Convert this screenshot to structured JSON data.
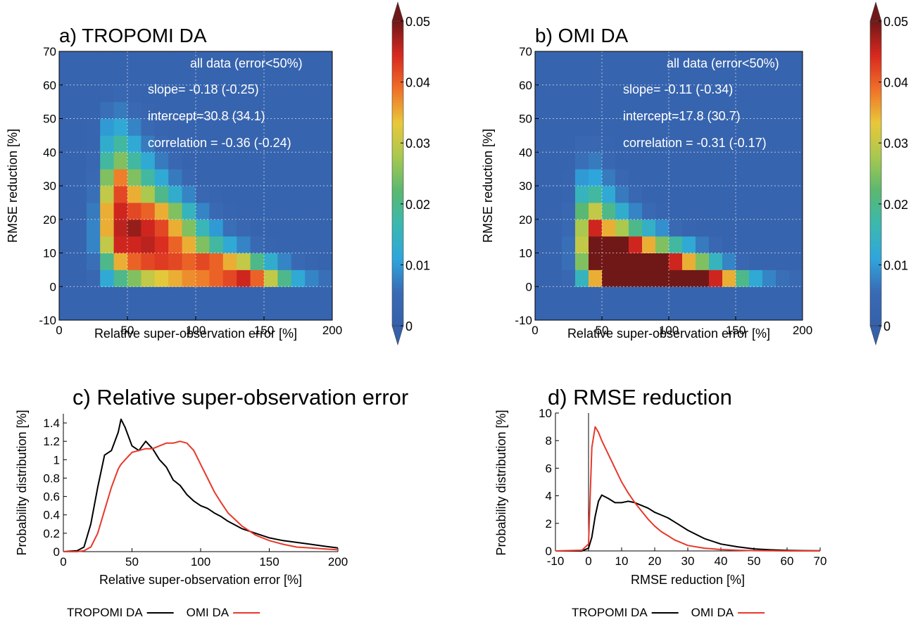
{
  "chart_data": [
    {
      "type": "heatmap",
      "title": "a) TROPOMI DA",
      "x_label": "Relative super-observation error [%]",
      "y_label": "RMSE reduction [%]",
      "annotations": [
        "all data (error<50%)",
        "slope= -0.18 (-0.25)",
        "intercept=30.8 (34.1)",
        "correlation = -0.36 (-0.24)"
      ],
      "xbins": [
        0,
        10,
        20,
        30,
        40,
        50,
        60,
        70,
        80,
        90,
        100,
        110,
        120,
        130,
        140,
        150,
        160,
        170,
        180,
        190,
        200
      ],
      "ybins": [
        -10,
        -5,
        0,
        5,
        10,
        15,
        20,
        25,
        30,
        35,
        40,
        45,
        50,
        55,
        60,
        65,
        70
      ],
      "z": [
        [
          0.002,
          0.002,
          0.002,
          0.002,
          0.002,
          0.002,
          0.002,
          0.002,
          0.002,
          0.002,
          0.002,
          0.002,
          0.002,
          0.002,
          0.002,
          0.002,
          0.002,
          0.002,
          0.002,
          0.002
        ],
        [
          0.002,
          0.002,
          0.002,
          0.002,
          0.002,
          0.002,
          0.002,
          0.002,
          0.002,
          0.002,
          0.002,
          0.002,
          0.002,
          0.002,
          0.002,
          0.002,
          0.002,
          0.002,
          0.002,
          0.002
        ],
        [
          0.002,
          0.002,
          0.004,
          0.012,
          0.02,
          0.025,
          0.03,
          0.033,
          0.035,
          0.037,
          0.038,
          0.04,
          0.042,
          0.045,
          0.04,
          0.03,
          0.02,
          0.012,
          0.008,
          0.006
        ],
        [
          0.002,
          0.002,
          0.006,
          0.02,
          0.035,
          0.04,
          0.042,
          0.043,
          0.042,
          0.04,
          0.042,
          0.04,
          0.035,
          0.03,
          0.02,
          0.013,
          0.008,
          0.005,
          0.003,
          0.002
        ],
        [
          0.002,
          0.002,
          0.008,
          0.03,
          0.045,
          0.045,
          0.046,
          0.044,
          0.04,
          0.035,
          0.025,
          0.018,
          0.012,
          0.008,
          0.005,
          0.003,
          0.002,
          0.002,
          0.002,
          0.002
        ],
        [
          0.002,
          0.002,
          0.008,
          0.035,
          0.046,
          0.048,
          0.045,
          0.042,
          0.035,
          0.025,
          0.016,
          0.01,
          0.006,
          0.004,
          0.002,
          0.002,
          0.002,
          0.002,
          0.002,
          0.002
        ],
        [
          0.002,
          0.002,
          0.007,
          0.035,
          0.045,
          0.042,
          0.04,
          0.035,
          0.025,
          0.015,
          0.008,
          0.005,
          0.003,
          0.002,
          0.002,
          0.002,
          0.002,
          0.002,
          0.002,
          0.002
        ],
        [
          0.002,
          0.002,
          0.006,
          0.03,
          0.042,
          0.035,
          0.028,
          0.02,
          0.013,
          0.008,
          0.004,
          0.003,
          0.002,
          0.002,
          0.002,
          0.002,
          0.002,
          0.002,
          0.002,
          0.002
        ],
        [
          0.002,
          0.002,
          0.005,
          0.025,
          0.038,
          0.025,
          0.018,
          0.012,
          0.007,
          0.004,
          0.002,
          0.002,
          0.002,
          0.002,
          0.002,
          0.002,
          0.002,
          0.002,
          0.002,
          0.002
        ],
        [
          0.002,
          0.002,
          0.004,
          0.018,
          0.025,
          0.018,
          0.012,
          0.007,
          0.004,
          0.002,
          0.002,
          0.002,
          0.002,
          0.002,
          0.002,
          0.002,
          0.002,
          0.002,
          0.002,
          0.002
        ],
        [
          0.002,
          0.002,
          0.003,
          0.013,
          0.018,
          0.012,
          0.007,
          0.004,
          0.002,
          0.002,
          0.002,
          0.002,
          0.002,
          0.002,
          0.002,
          0.002,
          0.002,
          0.002,
          0.002,
          0.002
        ],
        [
          0.002,
          0.002,
          0.003,
          0.01,
          0.012,
          0.008,
          0.005,
          0.003,
          0.002,
          0.002,
          0.002,
          0.002,
          0.002,
          0.002,
          0.002,
          0.002,
          0.002,
          0.002,
          0.002,
          0.002
        ],
        [
          0.002,
          0.002,
          0.002,
          0.006,
          0.007,
          0.005,
          0.003,
          0.002,
          0.002,
          0.002,
          0.002,
          0.002,
          0.002,
          0.002,
          0.002,
          0.002,
          0.002,
          0.002,
          0.002,
          0.002
        ],
        [
          0.002,
          0.002,
          0.002,
          0.003,
          0.004,
          0.003,
          0.002,
          0.002,
          0.002,
          0.002,
          0.002,
          0.002,
          0.002,
          0.002,
          0.002,
          0.002,
          0.002,
          0.002,
          0.002,
          0.002
        ],
        [
          0.002,
          0.002,
          0.002,
          0.002,
          0.002,
          0.002,
          0.002,
          0.002,
          0.002,
          0.002,
          0.002,
          0.002,
          0.002,
          0.002,
          0.002,
          0.002,
          0.002,
          0.002,
          0.002,
          0.002
        ],
        [
          0.002,
          0.002,
          0.002,
          0.002,
          0.002,
          0.002,
          0.002,
          0.002,
          0.002,
          0.002,
          0.002,
          0.002,
          0.002,
          0.002,
          0.002,
          0.002,
          0.002,
          0.002,
          0.002,
          0.002
        ]
      ],
      "xlim": [
        0,
        200
      ],
      "xticks": [
        0,
        50,
        100,
        150,
        200
      ],
      "ylim": [
        -10,
        70
      ],
      "yticks": [
        -10,
        0,
        10,
        20,
        30,
        40,
        50,
        60,
        70
      ],
      "zlim": [
        0,
        0.05
      ],
      "zticks": [
        0,
        0.01,
        0.02,
        0.03,
        0.04,
        0.05
      ],
      "colormap": [
        "#3560aa",
        "#3a6ab4",
        "#2ea6dc",
        "#3bb8b0",
        "#5ab870",
        "#a8c850",
        "#e8c83a",
        "#f07028",
        "#d82820",
        "#701818"
      ],
      "grid": true
    },
    {
      "type": "heatmap",
      "title": "b) OMI DA",
      "x_label": "Relative super-observation error [%]",
      "y_label": "RMSE reduction [%]",
      "annotations": [
        "all data (error<50%)",
        "slope= -0.11 (-0.34)",
        "intercept=17.8 (30.7)",
        "correlation = -0.31 (-0.17)"
      ],
      "xbins": [
        0,
        10,
        20,
        30,
        40,
        50,
        60,
        70,
        80,
        90,
        100,
        110,
        120,
        130,
        140,
        150,
        160,
        170,
        180,
        190,
        200
      ],
      "ybins": [
        -10,
        -5,
        0,
        5,
        10,
        15,
        20,
        25,
        30,
        35,
        40,
        45,
        50,
        55,
        60,
        65,
        70
      ],
      "z": [
        [
          0.002,
          0.002,
          0.002,
          0.002,
          0.002,
          0.002,
          0.002,
          0.002,
          0.002,
          0.002,
          0.002,
          0.002,
          0.002,
          0.002,
          0.002,
          0.002,
          0.002,
          0.002,
          0.002,
          0.002
        ],
        [
          0.002,
          0.002,
          0.002,
          0.002,
          0.002,
          0.002,
          0.002,
          0.002,
          0.002,
          0.002,
          0.002,
          0.002,
          0.002,
          0.002,
          0.002,
          0.002,
          0.002,
          0.002,
          0.002,
          0.002
        ],
        [
          0.002,
          0.002,
          0.004,
          0.015,
          0.035,
          0.05,
          0.05,
          0.05,
          0.05,
          0.05,
          0.05,
          0.05,
          0.05,
          0.045,
          0.035,
          0.02,
          0.012,
          0.008,
          0.006,
          0.005
        ],
        [
          0.002,
          0.002,
          0.006,
          0.025,
          0.05,
          0.05,
          0.05,
          0.05,
          0.05,
          0.05,
          0.045,
          0.035,
          0.025,
          0.015,
          0.008,
          0.004,
          0.002,
          0.002,
          0.002,
          0.002
        ],
        [
          0.002,
          0.002,
          0.006,
          0.03,
          0.05,
          0.05,
          0.05,
          0.045,
          0.035,
          0.025,
          0.018,
          0.012,
          0.007,
          0.004,
          0.002,
          0.002,
          0.002,
          0.002,
          0.002,
          0.002
        ],
        [
          0.002,
          0.002,
          0.005,
          0.028,
          0.045,
          0.035,
          0.028,
          0.02,
          0.014,
          0.009,
          0.005,
          0.003,
          0.002,
          0.002,
          0.002,
          0.002,
          0.002,
          0.002,
          0.002,
          0.002
        ],
        [
          0.002,
          0.002,
          0.004,
          0.022,
          0.03,
          0.02,
          0.013,
          0.008,
          0.005,
          0.003,
          0.002,
          0.002,
          0.002,
          0.002,
          0.002,
          0.002,
          0.002,
          0.002,
          0.002,
          0.002
        ],
        [
          0.002,
          0.002,
          0.003,
          0.015,
          0.018,
          0.012,
          0.007,
          0.004,
          0.002,
          0.002,
          0.002,
          0.002,
          0.002,
          0.002,
          0.002,
          0.002,
          0.002,
          0.002,
          0.002,
          0.002
        ],
        [
          0.002,
          0.002,
          0.003,
          0.01,
          0.011,
          0.007,
          0.004,
          0.002,
          0.002,
          0.002,
          0.002,
          0.002,
          0.002,
          0.002,
          0.002,
          0.002,
          0.002,
          0.002,
          0.002,
          0.002
        ],
        [
          0.002,
          0.002,
          0.002,
          0.006,
          0.007,
          0.004,
          0.002,
          0.002,
          0.002,
          0.002,
          0.002,
          0.002,
          0.002,
          0.002,
          0.002,
          0.002,
          0.002,
          0.002,
          0.002,
          0.002
        ],
        [
          0.002,
          0.002,
          0.002,
          0.004,
          0.004,
          0.003,
          0.002,
          0.002,
          0.002,
          0.002,
          0.002,
          0.002,
          0.002,
          0.002,
          0.002,
          0.002,
          0.002,
          0.002,
          0.002,
          0.002
        ],
        [
          0.002,
          0.002,
          0.002,
          0.002,
          0.002,
          0.002,
          0.002,
          0.002,
          0.002,
          0.002,
          0.002,
          0.002,
          0.002,
          0.002,
          0.002,
          0.002,
          0.002,
          0.002,
          0.002,
          0.002
        ],
        [
          0.002,
          0.002,
          0.002,
          0.002,
          0.002,
          0.002,
          0.002,
          0.002,
          0.002,
          0.002,
          0.002,
          0.002,
          0.002,
          0.002,
          0.002,
          0.002,
          0.002,
          0.002,
          0.002,
          0.002
        ],
        [
          0.002,
          0.002,
          0.002,
          0.002,
          0.002,
          0.002,
          0.002,
          0.002,
          0.002,
          0.002,
          0.002,
          0.002,
          0.002,
          0.002,
          0.002,
          0.002,
          0.002,
          0.002,
          0.002,
          0.002
        ],
        [
          0.002,
          0.002,
          0.002,
          0.002,
          0.002,
          0.002,
          0.002,
          0.002,
          0.002,
          0.002,
          0.002,
          0.002,
          0.002,
          0.002,
          0.002,
          0.002,
          0.002,
          0.002,
          0.002,
          0.002
        ],
        [
          0.002,
          0.002,
          0.002,
          0.002,
          0.002,
          0.002,
          0.002,
          0.002,
          0.002,
          0.002,
          0.002,
          0.002,
          0.002,
          0.002,
          0.002,
          0.002,
          0.002,
          0.002,
          0.002,
          0.002
        ]
      ],
      "xlim": [
        0,
        200
      ],
      "xticks": [
        0,
        50,
        100,
        150,
        200
      ],
      "ylim": [
        -10,
        70
      ],
      "yticks": [
        -10,
        0,
        10,
        20,
        30,
        40,
        50,
        60,
        70
      ],
      "zlim": [
        0,
        0.05
      ],
      "zticks": [
        0,
        0.01,
        0.02,
        0.03,
        0.04,
        0.05
      ],
      "colormap": [
        "#3560aa",
        "#3a6ab4",
        "#2ea6dc",
        "#3bb8b0",
        "#5ab870",
        "#a8c850",
        "#e8c83a",
        "#f07028",
        "#d82820",
        "#701818"
      ],
      "grid": true
    },
    {
      "type": "line",
      "title": "c) Relative super-observation error",
      "x_label": "Relative super-observation error [%]",
      "y_label": "Probability distribution [%]",
      "x": [
        0,
        10,
        15,
        20,
        25,
        30,
        35,
        40,
        42,
        45,
        50,
        55,
        60,
        65,
        70,
        75,
        80,
        85,
        90,
        95,
        100,
        105,
        110,
        115,
        120,
        130,
        140,
        150,
        160,
        170,
        180,
        190,
        200
      ],
      "series": [
        {
          "name": "TROPOMI DA",
          "color": "#000000",
          "values": [
            0,
            0.01,
            0.05,
            0.3,
            0.7,
            1.05,
            1.1,
            1.3,
            1.44,
            1.35,
            1.15,
            1.1,
            1.2,
            1.12,
            1.0,
            0.92,
            0.78,
            0.72,
            0.62,
            0.55,
            0.5,
            0.47,
            0.42,
            0.38,
            0.33,
            0.25,
            0.2,
            0.15,
            0.12,
            0.1,
            0.08,
            0.06,
            0.04
          ]
        },
        {
          "name": "OMI DA",
          "color": "#e8382b",
          "values": [
            0,
            0,
            0.01,
            0.05,
            0.2,
            0.45,
            0.7,
            0.9,
            0.95,
            1.0,
            1.08,
            1.1,
            1.12,
            1.12,
            1.15,
            1.18,
            1.18,
            1.2,
            1.18,
            1.1,
            0.95,
            0.8,
            0.65,
            0.53,
            0.42,
            0.28,
            0.18,
            0.12,
            0.08,
            0.05,
            0.04,
            0.03,
            0.02
          ]
        }
      ],
      "xlim": [
        0,
        200
      ],
      "xticks": [
        0,
        50,
        100,
        150,
        200
      ],
      "ylim": [
        0,
        1.5
      ],
      "yticks": [
        0,
        0.2,
        0.4,
        0.6,
        0.8,
        1,
        1.2,
        1.4
      ],
      "legend": "bottom"
    },
    {
      "type": "line",
      "title": "d) RMSE reduction",
      "x_label": "RMSE reduction [%]",
      "y_label": "Probability distribution [%]",
      "x": [
        -10,
        -2,
        0,
        1,
        2,
        3,
        4,
        6,
        8,
        10,
        12,
        14,
        16,
        18,
        20,
        22,
        24,
        26,
        28,
        30,
        35,
        40,
        45,
        50,
        55,
        60,
        65,
        70
      ],
      "series": [
        {
          "name": "TROPOMI DA",
          "color": "#000000",
          "values": [
            0,
            0,
            0.2,
            1.0,
            2.5,
            3.6,
            4.05,
            3.8,
            3.5,
            3.5,
            3.6,
            3.5,
            3.3,
            3.1,
            2.8,
            2.6,
            2.4,
            2.1,
            1.8,
            1.5,
            0.9,
            0.5,
            0.3,
            0.15,
            0.08,
            0.04,
            0.02,
            0.01
          ]
        },
        {
          "name": "OMI DA",
          "color": "#e8382b",
          "values": [
            0,
            0.05,
            0.5,
            7.5,
            9.0,
            8.6,
            8.0,
            7.0,
            6.0,
            5.0,
            4.2,
            3.5,
            2.9,
            2.3,
            1.8,
            1.4,
            1.1,
            0.8,
            0.6,
            0.4,
            0.2,
            0.1,
            0.05,
            0.02,
            0.01,
            0,
            0,
            0
          ]
        }
      ],
      "xlim": [
        -10,
        70
      ],
      "xticks": [
        -10,
        0,
        10,
        20,
        30,
        40,
        50,
        60,
        70
      ],
      "ylim": [
        0,
        10
      ],
      "yticks": [
        0,
        2,
        4,
        6,
        8,
        10
      ],
      "legend": "bottom"
    }
  ]
}
